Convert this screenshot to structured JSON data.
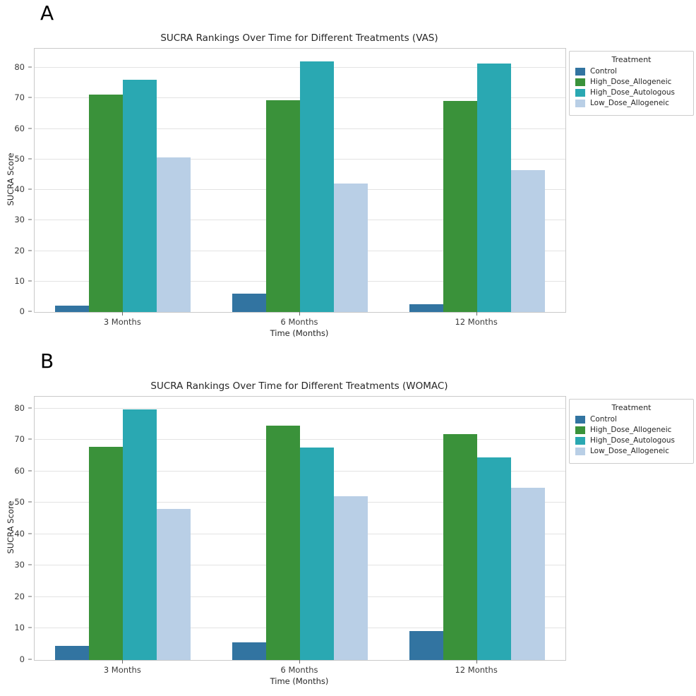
{
  "figure": {
    "background": "#ffffff"
  },
  "panels": [
    {
      "label": "A",
      "chart_data": {
        "type": "bar",
        "title": "SUCRA Rankings Over Time for Different Treatments (VAS)",
        "xlabel": "Time (Months)",
        "ylabel": "SUCRA Score",
        "legend_title": "Treatment",
        "legend_position": "upper right outside",
        "grid": true,
        "ylim": [
          0,
          86.3
        ],
        "yticks": [
          0,
          10,
          20,
          30,
          40,
          50,
          60,
          70,
          80
        ],
        "categories": [
          "3 Months",
          "6 Months",
          "12 Months"
        ],
        "series": [
          {
            "name": "Control",
            "color": "#3274a1",
            "values": [
              2.0,
              6.0,
              2.6
            ]
          },
          {
            "name": "High_Dose_Allogeneic",
            "color": "#3a923a",
            "values": [
              71.2,
              69.3,
              69.1
            ]
          },
          {
            "name": "High_Dose_Autologous",
            "color": "#2aa8b2",
            "values": [
              76.1,
              82.1,
              81.4
            ]
          },
          {
            "name": "Low_Dose_Allogeneic",
            "color": "#b9cfe6",
            "values": [
              50.6,
              42.2,
              46.6
            ]
          }
        ]
      }
    },
    {
      "label": "B",
      "chart_data": {
        "type": "bar",
        "title": "SUCRA Rankings Over Time for Different Treatments (WOMAC)",
        "xlabel": "Time (Months)",
        "ylabel": "SUCRA Score",
        "legend_title": "Treatment",
        "legend_position": "upper right outside",
        "grid": true,
        "ylim": [
          0,
          83.7
        ],
        "yticks": [
          0,
          10,
          20,
          30,
          40,
          50,
          60,
          70,
          80
        ],
        "categories": [
          "3 Months",
          "6 Months",
          "12 Months"
        ],
        "series": [
          {
            "name": "Control",
            "color": "#3274a1",
            "values": [
              4.4,
              5.6,
              9.1
            ]
          },
          {
            "name": "High_Dose_Allogeneic",
            "color": "#3a923a",
            "values": [
              67.8,
              74.4,
              71.8
            ]
          },
          {
            "name": "High_Dose_Autologous",
            "color": "#2aa8b2",
            "values": [
              79.6,
              67.6,
              64.4
            ]
          },
          {
            "name": "Low_Dose_Allogeneic",
            "color": "#b9cfe6",
            "values": [
              48.0,
              52.0,
              54.7
            ]
          }
        ]
      }
    }
  ]
}
